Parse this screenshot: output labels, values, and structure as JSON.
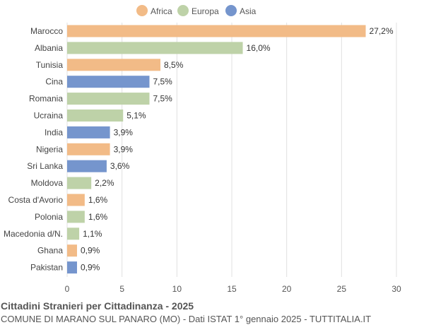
{
  "chart_data": {
    "type": "bar",
    "orientation": "horizontal",
    "title": "Cittadini Stranieri per Cittadinanza - 2025",
    "subtitle": "COMUNE DI MARANO SUL PANARO (MO) - Dati ISTAT 1° gennaio 2025 - TUTTITALIA.IT",
    "categories": [
      "Marocco",
      "Albania",
      "Tunisia",
      "Cina",
      "Romania",
      "Ucraina",
      "India",
      "Nigeria",
      "Sri Lanka",
      "Moldova",
      "Costa d'Avorio",
      "Polonia",
      "Macedonia d/N.",
      "Ghana",
      "Pakistan"
    ],
    "values": [
      27.2,
      16.0,
      8.5,
      7.5,
      7.5,
      5.1,
      3.9,
      3.9,
      3.6,
      2.2,
      1.6,
      1.6,
      1.1,
      0.9,
      0.9
    ],
    "labels": [
      "27,2%",
      "16,0%",
      "8,5%",
      "7,5%",
      "7,5%",
      "5,1%",
      "3,9%",
      "3,9%",
      "3,6%",
      "2,2%",
      "1,6%",
      "1,6%",
      "1,1%",
      "0,9%",
      "0,9%"
    ],
    "groups": [
      "Africa",
      "Europa",
      "Africa",
      "Asia",
      "Europa",
      "Europa",
      "Asia",
      "Africa",
      "Asia",
      "Europa",
      "Africa",
      "Europa",
      "Europa",
      "Africa",
      "Asia"
    ],
    "legend": [
      {
        "name": "Africa",
        "color": "#f2bb87"
      },
      {
        "name": "Europa",
        "color": "#bed2a8"
      },
      {
        "name": "Asia",
        "color": "#7595cd"
      }
    ],
    "legend_position": "top",
    "xlim": [
      0,
      30
    ],
    "xticks": [
      "0",
      "5",
      "10",
      "15",
      "20",
      "25",
      "30"
    ],
    "grid": true
  }
}
